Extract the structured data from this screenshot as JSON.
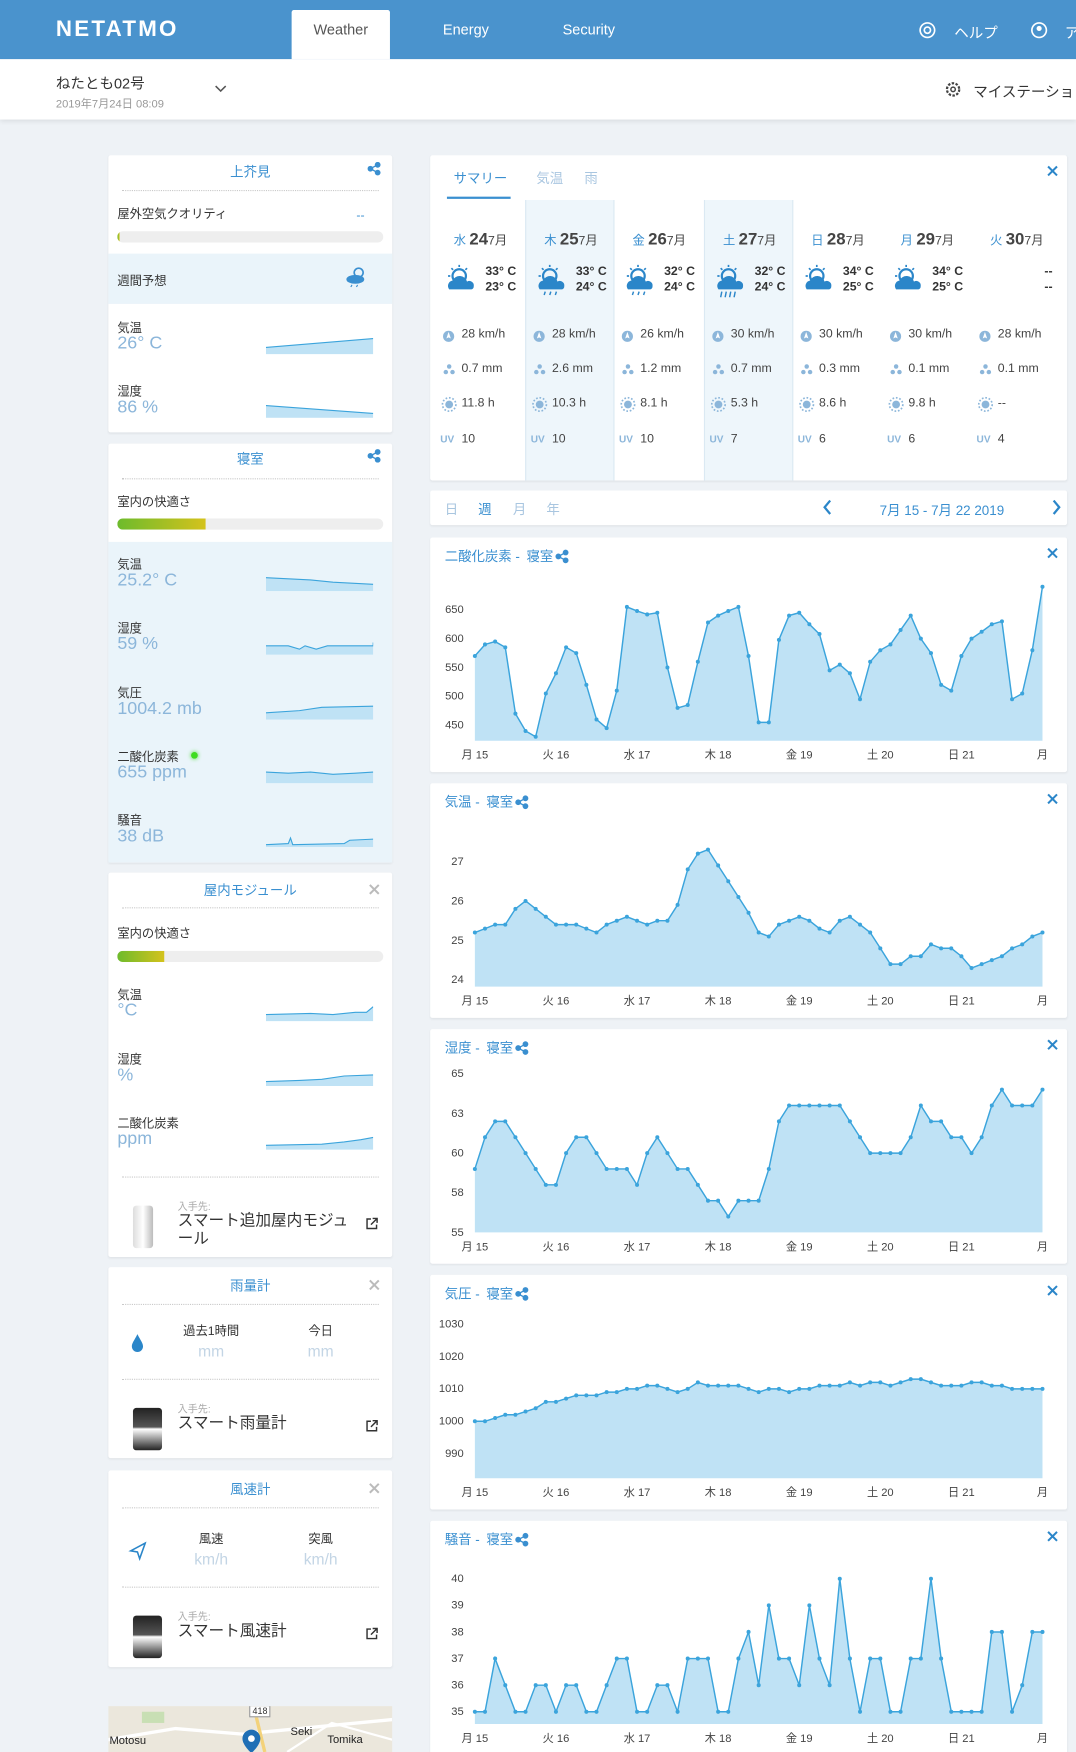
{
  "header": {
    "logo": "NETATMO",
    "tabs": [
      "Weather",
      "Energy",
      "Security"
    ],
    "help": "ヘルプ",
    "account": "ア"
  },
  "station": {
    "name": "ねたとも02号",
    "updated": "2019年7月24日 08:09",
    "my_stations": "マイステーショ"
  },
  "sidebar": {
    "outdoor": {
      "title": "上芥見",
      "air_quality_label": "屋外空気クオリティ",
      "air_quality_value": "--",
      "forecast_label": "週間予想",
      "rows": [
        {
          "label": "気温",
          "value": "26° C"
        },
        {
          "label": "湿度",
          "value": "86 %"
        }
      ]
    },
    "bedroom": {
      "title": "寝室",
      "comfort_label": "室内の快適さ",
      "rows": [
        {
          "label": "気温",
          "value": "25.2° C"
        },
        {
          "label": "湿度",
          "value": "59 %"
        },
        {
          "label": "気圧",
          "value": "1004.2 mb"
        },
        {
          "label": "二酸化炭素",
          "value": "655 ppm"
        },
        {
          "label": "騒音",
          "value": "38 dB"
        }
      ]
    },
    "indoor_module": {
      "title": "屋内モジュール",
      "comfort_label": "室内の快適さ",
      "rows": [
        {
          "label": "気温",
          "value": "°C"
        },
        {
          "label": "湿度",
          "value": "%"
        },
        {
          "label": "二酸化炭素",
          "value": "ppm"
        }
      ],
      "get_label": "入手先:",
      "product": "スマート追加屋内モジュール"
    },
    "rain_gauge": {
      "title": "雨量計",
      "cols": [
        {
          "label": "過去1時間",
          "value": "mm"
        },
        {
          "label": "今日",
          "value": "mm"
        }
      ],
      "get_label": "入手先:",
      "product": "スマート雨量計"
    },
    "wind_gauge": {
      "title": "風速計",
      "cols": [
        {
          "label": "風速",
          "value": "km/h"
        },
        {
          "label": "突風",
          "value": "km/h"
        }
      ],
      "get_label": "入手先:",
      "product": "スマート風速計"
    },
    "map": {
      "labels": [
        "Motosu",
        "Seki",
        "Tomika",
        "418"
      ]
    }
  },
  "forecast": {
    "tabs": [
      "サマリー",
      "気温",
      "雨"
    ],
    "uv_label": "UV",
    "days": [
      {
        "weekday": "水",
        "day": "24",
        "month": "7月",
        "high": "33° C",
        "low": "23° C",
        "wind": "28 km/h",
        "rain": "0.7 mm",
        "sun": "11.8 h",
        "uv": "10"
      },
      {
        "weekday": "木",
        "day": "25",
        "month": "7月",
        "high": "33° C",
        "low": "24° C",
        "wind": "28 km/h",
        "rain": "2.6 mm",
        "sun": "10.3 h",
        "uv": "10"
      },
      {
        "weekday": "金",
        "day": "26",
        "month": "7月",
        "high": "32° C",
        "low": "24° C",
        "wind": "26 km/h",
        "rain": "1.2 mm",
        "sun": "8.1 h",
        "uv": "10"
      },
      {
        "weekday": "土",
        "day": "27",
        "month": "7月",
        "high": "32° C",
        "low": "24° C",
        "wind": "30 km/h",
        "rain": "0.7 mm",
        "sun": "5.3 h",
        "uv": "7"
      },
      {
        "weekday": "日",
        "day": "28",
        "month": "7月",
        "high": "34° C",
        "low": "25° C",
        "wind": "30 km/h",
        "rain": "0.3 mm",
        "sun": "8.6 h",
        "uv": "6"
      },
      {
        "weekday": "月",
        "day": "29",
        "month": "7月",
        "high": "34° C",
        "low": "25° C",
        "wind": "30 km/h",
        "rain": "0.1 mm",
        "sun": "9.8 h",
        "uv": "6"
      },
      {
        "weekday": "火",
        "day": "30",
        "month": "7月",
        "high": "--",
        "low": "--",
        "wind": "28 km/h",
        "rain": "0.1 mm",
        "sun": "--",
        "uv": "4"
      }
    ]
  },
  "period": {
    "tabs": [
      "日",
      "週",
      "月",
      "年"
    ],
    "range": "7月 15 - 7月 22 2019"
  },
  "chart_data": [
    {
      "type": "line",
      "title": "二酸化炭素 -",
      "subtitle": "寝室",
      "color": "#3ba4dc",
      "area_color": "#bfe2f5",
      "x": [
        0,
        3,
        6,
        9,
        12,
        15,
        18,
        21,
        24,
        27,
        30,
        33,
        36,
        39,
        42,
        45,
        48,
        51,
        54,
        57,
        60,
        63,
        66,
        69,
        72,
        75,
        78,
        81,
        84,
        87,
        90,
        93,
        96,
        99,
        102,
        105,
        108,
        111,
        114,
        117,
        120,
        123,
        126,
        129,
        132,
        135,
        138,
        141,
        144,
        147,
        150,
        153,
        156,
        159,
        162,
        165,
        168
      ],
      "values": [
        570,
        590,
        595,
        585,
        470,
        440,
        430,
        505,
        540,
        585,
        575,
        520,
        460,
        445,
        510,
        655,
        648,
        642,
        645,
        550,
        480,
        485,
        560,
        628,
        640,
        648,
        655,
        570,
        455,
        455,
        598,
        640,
        645,
        625,
        608,
        545,
        555,
        540,
        495,
        560,
        580,
        590,
        615,
        640,
        600,
        575,
        520,
        510,
        570,
        600,
        612,
        625,
        630,
        495,
        505,
        580,
        690
      ],
      "xlim": [
        0,
        168
      ],
      "xticks": [
        {
          "value": 0,
          "label": "月 15"
        },
        {
          "value": 24,
          "label": "火 16"
        },
        {
          "value": 48,
          "label": "水 17"
        },
        {
          "value": 72,
          "label": "木 18"
        },
        {
          "value": 96,
          "label": "金 19"
        },
        {
          "value": 120,
          "label": "土 20"
        },
        {
          "value": 144,
          "label": "日 21"
        },
        {
          "value": 168,
          "label": "月"
        }
      ],
      "ylim": [
        423,
        698
      ],
      "yticks": [
        450,
        500,
        550,
        600,
        650
      ],
      "grid": false
    },
    {
      "type": "line",
      "title": "気温 -",
      "subtitle": "寝室",
      "color": "#3ba4dc",
      "area_color": "#bfe2f5",
      "x": [
        0,
        3,
        6,
        9,
        12,
        15,
        18,
        21,
        24,
        27,
        30,
        33,
        36,
        39,
        42,
        45,
        48,
        51,
        54,
        57,
        60,
        63,
        66,
        69,
        72,
        75,
        78,
        81,
        84,
        87,
        90,
        93,
        96,
        99,
        102,
        105,
        108,
        111,
        114,
        117,
        120,
        123,
        126,
        129,
        132,
        135,
        138,
        141,
        144,
        147,
        150,
        153,
        156,
        159,
        162,
        165,
        168
      ],
      "values": [
        25.2,
        25.3,
        25.4,
        25.4,
        25.8,
        26.0,
        25.8,
        25.6,
        25.4,
        25.4,
        25.4,
        25.3,
        25.2,
        25.4,
        25.5,
        25.6,
        25.5,
        25.4,
        25.5,
        25.5,
        25.9,
        26.8,
        27.2,
        27.3,
        26.9,
        26.5,
        26.1,
        25.7,
        25.2,
        25.1,
        25.4,
        25.5,
        25.6,
        25.5,
        25.3,
        25.2,
        25.5,
        25.6,
        25.4,
        25.2,
        24.8,
        24.4,
        24.4,
        24.6,
        24.6,
        24.9,
        24.8,
        24.8,
        24.6,
        24.3,
        24.4,
        24.5,
        24.6,
        24.8,
        24.9,
        25.1,
        25.2
      ],
      "xlim": [
        0,
        168
      ],
      "xticks": [
        {
          "value": 0,
          "label": "月 15"
        },
        {
          "value": 24,
          "label": "火 16"
        },
        {
          "value": 48,
          "label": "水 17"
        },
        {
          "value": 72,
          "label": "木 18"
        },
        {
          "value": 96,
          "label": "金 19"
        },
        {
          "value": 120,
          "label": "土 20"
        },
        {
          "value": 144,
          "label": "日 21"
        },
        {
          "value": 168,
          "label": "月"
        }
      ],
      "ylim": [
        23.83,
        27.85
      ],
      "yticks": [
        24,
        25,
        26,
        27
      ],
      "grid": false
    },
    {
      "type": "line",
      "title": "湿度 -",
      "subtitle": "寝室",
      "color": "#3ba4dc",
      "area_color": "#bfe2f5",
      "x": [
        0,
        3,
        6,
        9,
        12,
        15,
        18,
        21,
        24,
        27,
        30,
        33,
        36,
        39,
        42,
        45,
        48,
        51,
        54,
        57,
        60,
        63,
        66,
        69,
        72,
        75,
        78,
        81,
        84,
        87,
        90,
        93,
        96,
        99,
        102,
        105,
        108,
        111,
        114,
        117,
        120,
        123,
        126,
        129,
        132,
        135,
        138,
        141,
        144,
        147,
        150,
        153,
        156,
        159,
        162,
        165,
        168
      ],
      "values": [
        59,
        61,
        62,
        62,
        61,
        60,
        59,
        58,
        58,
        60,
        61,
        61,
        60,
        59,
        59,
        59,
        58,
        60,
        61,
        60,
        59,
        59,
        58,
        57,
        57,
        56,
        57,
        57,
        57,
        59,
        62,
        63,
        63,
        63,
        63,
        63,
        63,
        62,
        61,
        60,
        60,
        60,
        60,
        61,
        63,
        62,
        62,
        61,
        61,
        60,
        61,
        63,
        64,
        63,
        63,
        63,
        64
      ],
      "xlim": [
        0,
        168
      ],
      "xticks": [
        {
          "value": 0,
          "label": "月 15"
        },
        {
          "value": 24,
          "label": "火 16"
        },
        {
          "value": 48,
          "label": "水 17"
        },
        {
          "value": 72,
          "label": "木 18"
        },
        {
          "value": 96,
          "label": "金 19"
        },
        {
          "value": 120,
          "label": "土 20"
        },
        {
          "value": 144,
          "label": "日 21"
        },
        {
          "value": 168,
          "label": "月"
        }
      ],
      "ylim": [
        55,
        65
      ],
      "yticks": [
        55,
        {
          "value": 57.5,
          "label": "58"
        },
        60,
        {
          "value": 62.5,
          "label": "63"
        },
        65
      ],
      "grid": false
    },
    {
      "type": "line",
      "title": "気圧 -",
      "subtitle": "寝室",
      "color": "#3ba4dc",
      "area_color": "#bfe2f5",
      "x": [
        0,
        3,
        6,
        9,
        12,
        15,
        18,
        21,
        24,
        27,
        30,
        33,
        36,
        39,
        42,
        45,
        48,
        51,
        54,
        57,
        60,
        63,
        66,
        69,
        72,
        75,
        78,
        81,
        84,
        87,
        90,
        93,
        96,
        99,
        102,
        105,
        108,
        111,
        114,
        117,
        120,
        123,
        126,
        129,
        132,
        135,
        138,
        141,
        144,
        147,
        150,
        153,
        156,
        159,
        162,
        165,
        168
      ],
      "values": [
        1000,
        1000,
        1001,
        1002,
        1002,
        1003,
        1004,
        1006,
        1006,
        1007,
        1008,
        1008,
        1008,
        1009,
        1009,
        1010,
        1010,
        1011,
        1011,
        1010,
        1009,
        1010,
        1012,
        1011,
        1011,
        1011,
        1011,
        1010,
        1009,
        1010,
        1010,
        1009,
        1010,
        1010,
        1011,
        1011,
        1011,
        1012,
        1011,
        1012,
        1012,
        1011,
        1012,
        1013,
        1013,
        1012,
        1011,
        1011,
        1011,
        1012,
        1012,
        1011,
        1011,
        1010,
        1010,
        1010,
        1010
      ],
      "xlim": [
        0,
        168
      ],
      "xticks": [
        {
          "value": 0,
          "label": "月 15"
        },
        {
          "value": 24,
          "label": "火 16"
        },
        {
          "value": 48,
          "label": "水 17"
        },
        {
          "value": 72,
          "label": "木 18"
        },
        {
          "value": 96,
          "label": "金 19"
        },
        {
          "value": 120,
          "label": "土 20"
        },
        {
          "value": 144,
          "label": "日 21"
        },
        {
          "value": 168,
          "label": "月"
        }
      ],
      "ylim": [
        982.4,
        1031.4
      ],
      "yticks": [
        990,
        1000,
        1010,
        1020,
        1030
      ],
      "grid": false
    },
    {
      "type": "line",
      "title": "騒音 -",
      "subtitle": "寝室",
      "color": "#3ba4dc",
      "area_color": "#bfe2f5",
      "x": [
        0,
        3,
        6,
        9,
        12,
        15,
        18,
        21,
        24,
        27,
        30,
        33,
        36,
        39,
        42,
        45,
        48,
        51,
        54,
        57,
        60,
        63,
        66,
        69,
        72,
        75,
        78,
        81,
        84,
        87,
        90,
        93,
        96,
        99,
        102,
        105,
        108,
        111,
        114,
        117,
        120,
        123,
        126,
        129,
        132,
        135,
        138,
        141,
        144,
        147,
        150,
        153,
        156,
        159,
        162,
        165,
        168
      ],
      "values": [
        35,
        35,
        37,
        36,
        35,
        35,
        36,
        36,
        35,
        36,
        36,
        35,
        35,
        36,
        37,
        37,
        35,
        35,
        36,
        36,
        35,
        37,
        37,
        37,
        35,
        35,
        37,
        38,
        36,
        39,
        37,
        37,
        36,
        39,
        37,
        36,
        40,
        37,
        35,
        37,
        37,
        35,
        35,
        37,
        37,
        40,
        37,
        35,
        35,
        35,
        35,
        38,
        38,
        35,
        36,
        38,
        38
      ],
      "xlim": [
        0,
        168
      ],
      "xticks": [
        {
          "value": 0,
          "label": "月 15"
        },
        {
          "value": 24,
          "label": "火 16"
        },
        {
          "value": 48,
          "label": "水 17"
        },
        {
          "value": 72,
          "label": "木 18"
        },
        {
          "value": 96,
          "label": "金 19"
        },
        {
          "value": 120,
          "label": "土 20"
        },
        {
          "value": 144,
          "label": "日 21"
        },
        {
          "value": 168,
          "label": "月"
        }
      ],
      "ylim": [
        34.54,
        40.5
      ],
      "yticks": [
        35,
        36,
        37,
        38,
        39,
        40
      ],
      "grid": false
    }
  ]
}
